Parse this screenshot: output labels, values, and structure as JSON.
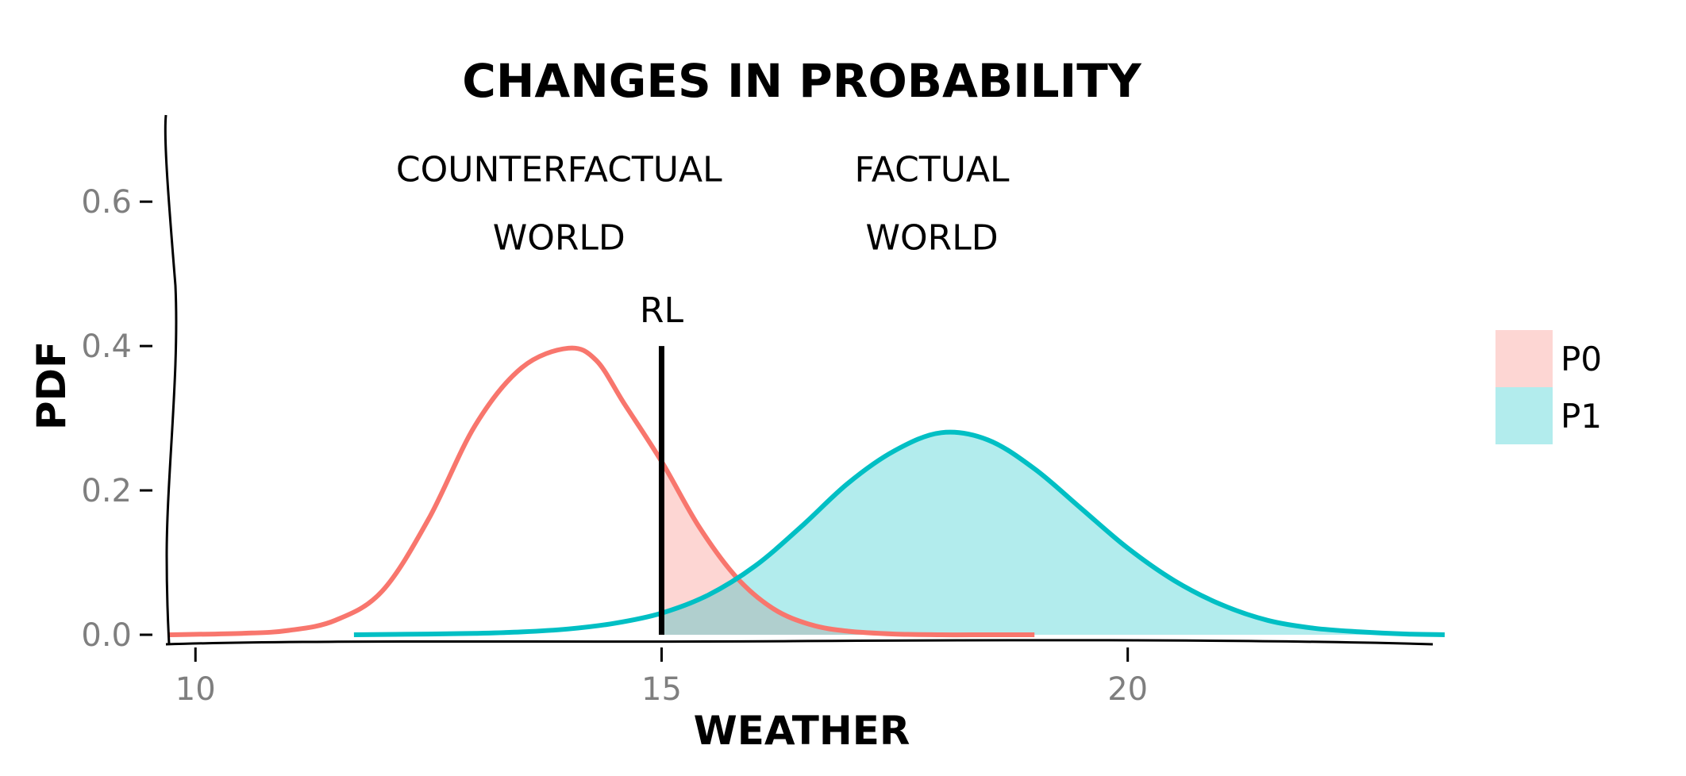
{
  "colors": {
    "p0_line": "#F8766D",
    "p0_fill": "#F8766D",
    "p1_line": "#00BFC4",
    "p1_fill": "#00BFC4",
    "rl_line": "#000000",
    "tick_label": "#7f7f7f"
  },
  "chart_data": {
    "type": "area",
    "title": "CHANGES IN PROBABILITY",
    "xlabel": "WEATHER",
    "ylabel": "PDF",
    "xlim": [
      9.7,
      23.4
    ],
    "ylim": [
      0.0,
      0.72
    ],
    "x_ticks": [
      10,
      15,
      20
    ],
    "x_tick_labels": [
      "10",
      "15",
      "20"
    ],
    "y_ticks": [
      0.0,
      0.2,
      0.4,
      0.6
    ],
    "y_tick_labels": [
      "0.0",
      "0.2",
      "0.4",
      "0.6"
    ],
    "grid": false,
    "legend_position": "right",
    "series": [
      {
        "name": "P0",
        "color": "#F8766D",
        "shaded_from_x": 15,
        "x": [
          9.7,
          10.5,
          11.0,
          11.5,
          12.0,
          12.5,
          13.0,
          13.5,
          14.0,
          14.3,
          14.6,
          15.0,
          15.4,
          15.8,
          16.2,
          16.6,
          17.0,
          17.5,
          18.0,
          18.5,
          19.0
        ],
        "values": [
          0.0,
          0.002,
          0.006,
          0.02,
          0.06,
          0.16,
          0.29,
          0.37,
          0.397,
          0.38,
          0.32,
          0.24,
          0.15,
          0.08,
          0.036,
          0.014,
          0.005,
          0.001,
          0.0,
          0.0,
          0.0
        ]
      },
      {
        "name": "P1",
        "color": "#00BFC4",
        "shaded_from_x": 15,
        "x": [
          11.7,
          12.5,
          13.0,
          13.5,
          14.0,
          14.5,
          15.0,
          15.5,
          16.0,
          16.5,
          17.0,
          17.5,
          18.0,
          18.5,
          19.0,
          19.5,
          20.0,
          20.5,
          21.0,
          21.5,
          22.0,
          22.5,
          23.0,
          23.4
        ],
        "values": [
          0.0,
          0.001,
          0.002,
          0.004,
          0.008,
          0.016,
          0.03,
          0.055,
          0.095,
          0.15,
          0.21,
          0.255,
          0.28,
          0.27,
          0.23,
          0.175,
          0.12,
          0.075,
          0.042,
          0.02,
          0.009,
          0.004,
          0.001,
          0.0
        ]
      }
    ],
    "vertical_line": {
      "label": "RL",
      "x": 15,
      "y_top": 0.4
    },
    "annotations": [
      {
        "lines": [
          "COUNTERFACTUAL",
          "WORLD"
        ],
        "x": 13.9,
        "y": 0.65
      },
      {
        "lines": [
          "FACTUAL",
          "WORLD"
        ],
        "x": 17.9,
        "y": 0.65
      }
    ],
    "legend": [
      {
        "name": "P0",
        "color": "#F8766D"
      },
      {
        "name": "P1",
        "color": "#00BFC4"
      }
    ]
  }
}
